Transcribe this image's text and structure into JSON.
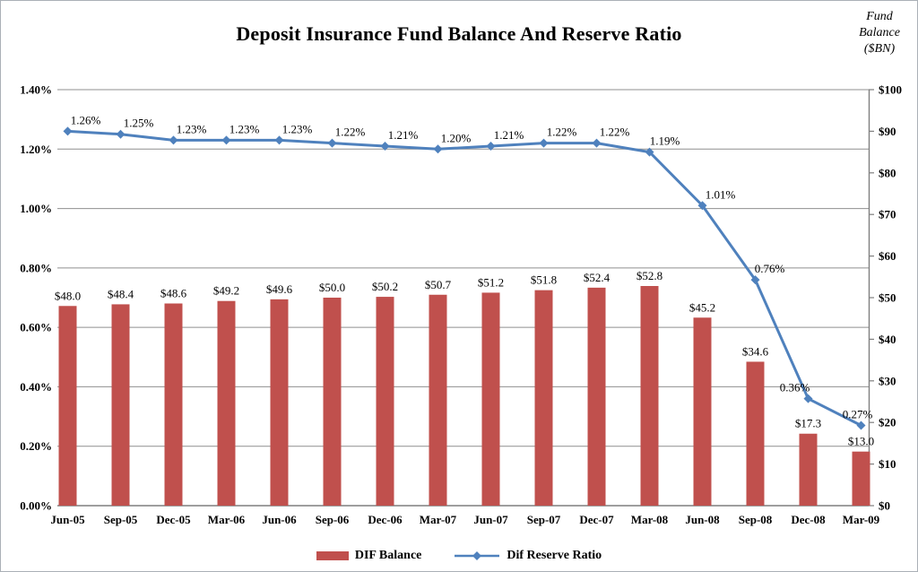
{
  "title": "Deposit Insurance Fund Balance And Reserve Ratio",
  "right_axis_title": [
    "Fund",
    "Balance",
    "($BN)"
  ],
  "legend": [
    {
      "label": "DIF Balance",
      "color": "#C0504D",
      "marker": "bar-swatch"
    },
    {
      "label": "Dif Reserve Ratio",
      "color": "#4F81BD",
      "marker": "line-diamond-swatch"
    }
  ],
  "colors": {
    "bar": "#C0504D",
    "line": "#4F81BD",
    "gridline": "#8f8f8f",
    "axis": "#7f7f7f",
    "text": "#000000"
  },
  "chart_data": {
    "type": "bar",
    "subtype": "combo-bar-line",
    "title": "Deposit Insurance Fund Balance And Reserve Ratio",
    "categories": [
      "Jun-05",
      "Sep-05",
      "Dec-05",
      "Mar-06",
      "Jun-06",
      "Sep-06",
      "Dec-06",
      "Mar-07",
      "Jun-07",
      "Sep-07",
      "Dec-07",
      "Mar-08",
      "Jun-08",
      "Sep-08",
      "Dec-08",
      "Mar-09"
    ],
    "series": [
      {
        "name": "DIF Balance",
        "type": "bar",
        "axis": "right",
        "unit": "$BN",
        "color": "#C0504D",
        "values": [
          48.0,
          48.4,
          48.6,
          49.2,
          49.6,
          50.0,
          50.2,
          50.7,
          51.2,
          51.8,
          52.4,
          52.8,
          45.2,
          34.6,
          17.3,
          13.0
        ],
        "labels": [
          "$48.0",
          "$48.4",
          "$48.6",
          "$49.2",
          "$49.6",
          "$50.0",
          "$50.2",
          "$50.7",
          "$51.2",
          "$51.8",
          "$52.4",
          "$52.8",
          "$45.2",
          "$34.6",
          "$17.3",
          "$13.0"
        ]
      },
      {
        "name": "Dif Reserve Ratio",
        "type": "line",
        "axis": "left",
        "unit": "%",
        "color": "#4F81BD",
        "values": [
          1.26,
          1.25,
          1.23,
          1.23,
          1.23,
          1.22,
          1.21,
          1.2,
          1.21,
          1.22,
          1.22,
          1.19,
          1.01,
          0.76,
          0.36,
          0.27
        ],
        "labels": [
          "1.26%",
          "1.25%",
          "1.23%",
          "1.23%",
          "1.23%",
          "1.22%",
          "1.21%",
          "1.20%",
          "1.21%",
          "1.22%",
          "1.22%",
          "1.19%",
          "1.01%",
          "0.76%",
          "0.36%",
          "0.27%"
        ]
      }
    ],
    "left_axis": {
      "min": 0,
      "max": 1.4,
      "ticks": [
        "0.00%",
        "0.20%",
        "0.40%",
        "0.60%",
        "0.80%",
        "1.00%",
        "1.20%",
        "1.40%"
      ]
    },
    "right_axis": {
      "min": 0,
      "max": 100,
      "ticks": [
        "$0",
        "$10",
        "$20",
        "$30",
        "$40",
        "$50",
        "$60",
        "$70",
        "$80",
        "$90",
        "$100"
      ],
      "title": "Fund Balance ($BN)"
    },
    "grid": "horizontal",
    "legend_position": "bottom"
  }
}
